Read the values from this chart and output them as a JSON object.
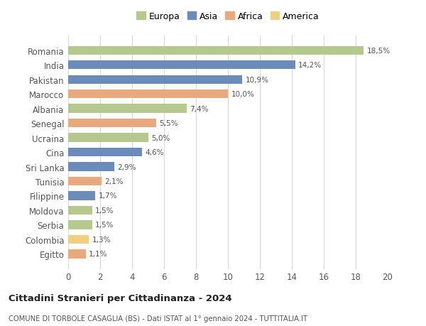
{
  "countries": [
    "Romania",
    "India",
    "Pakistan",
    "Marocco",
    "Albania",
    "Senegal",
    "Ucraina",
    "Cina",
    "Sri Lanka",
    "Tunisia",
    "Filippine",
    "Moldova",
    "Serbia",
    "Colombia",
    "Egitto"
  ],
  "values": [
    18.5,
    14.2,
    10.9,
    10.0,
    7.4,
    5.5,
    5.0,
    4.6,
    2.9,
    2.1,
    1.7,
    1.5,
    1.5,
    1.3,
    1.1
  ],
  "labels": [
    "18,5%",
    "14,2%",
    "10,9%",
    "10,0%",
    "7,4%",
    "5,5%",
    "5,0%",
    "4,6%",
    "2,9%",
    "2,1%",
    "1,7%",
    "1,5%",
    "1,5%",
    "1,3%",
    "1,1%"
  ],
  "colors": [
    "#b5c98e",
    "#6b8cba",
    "#6b8cba",
    "#e8a97e",
    "#b5c98e",
    "#e8a97e",
    "#b5c98e",
    "#6b8cba",
    "#6b8cba",
    "#e8a97e",
    "#6b8cba",
    "#b5c98e",
    "#b5c98e",
    "#f0d080",
    "#e8a97e"
  ],
  "legend_labels": [
    "Europa",
    "Asia",
    "Africa",
    "America"
  ],
  "legend_colors": [
    "#b5c98e",
    "#6b8cba",
    "#e8a97e",
    "#f0d080"
  ],
  "title": "Cittadini Stranieri per Cittadinanza - 2024",
  "subtitle": "COMUNE DI TORBOLE CASAGLIA (BS) - Dati ISTAT al 1° gennaio 2024 - TUTTITALIA.IT",
  "xlim": [
    0,
    20
  ],
  "xticks": [
    0,
    2,
    4,
    6,
    8,
    10,
    12,
    14,
    16,
    18,
    20
  ],
  "bg_color": "#ffffff",
  "grid_color": "#d8d8d8",
  "bar_height": 0.6
}
